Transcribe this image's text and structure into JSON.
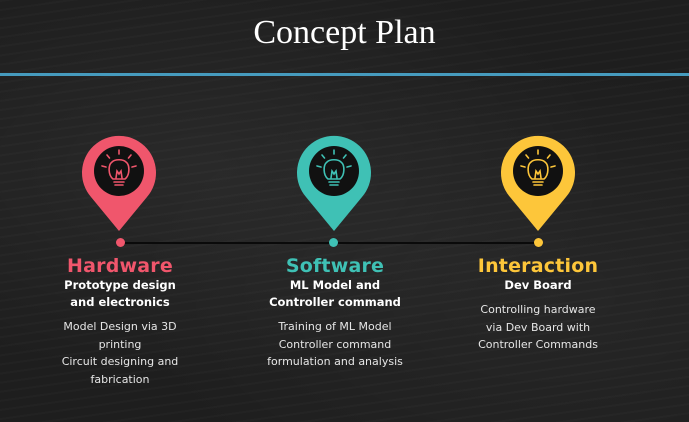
{
  "title": "Concept Plan",
  "colors": {
    "hardware": "#f0566c",
    "software": "#3fc1b5",
    "interaction": "#fdc63a",
    "divider": "#4aa8cf"
  },
  "stages": [
    {
      "icon": "lightbulb-icon",
      "heading": "Hardware",
      "subtitle_lines": [
        "Prototype design",
        "and electronics"
      ],
      "details": [
        "Model Design via 3D",
        "printing",
        "Circuit designing and",
        "fabrication"
      ]
    },
    {
      "icon": "lightbulb-icon",
      "heading": "Software",
      "subtitle_lines": [
        "ML Model and",
        "Controller command"
      ],
      "details": [
        "Training of ML Model",
        "Controller command",
        "formulation and analysis"
      ]
    },
    {
      "icon": "lightbulb-icon",
      "heading": "Interaction",
      "subtitle_lines": [
        "Dev Board"
      ],
      "details": [
        "Controlling hardware",
        "via Dev Board with",
        "Controller Commands"
      ]
    }
  ]
}
